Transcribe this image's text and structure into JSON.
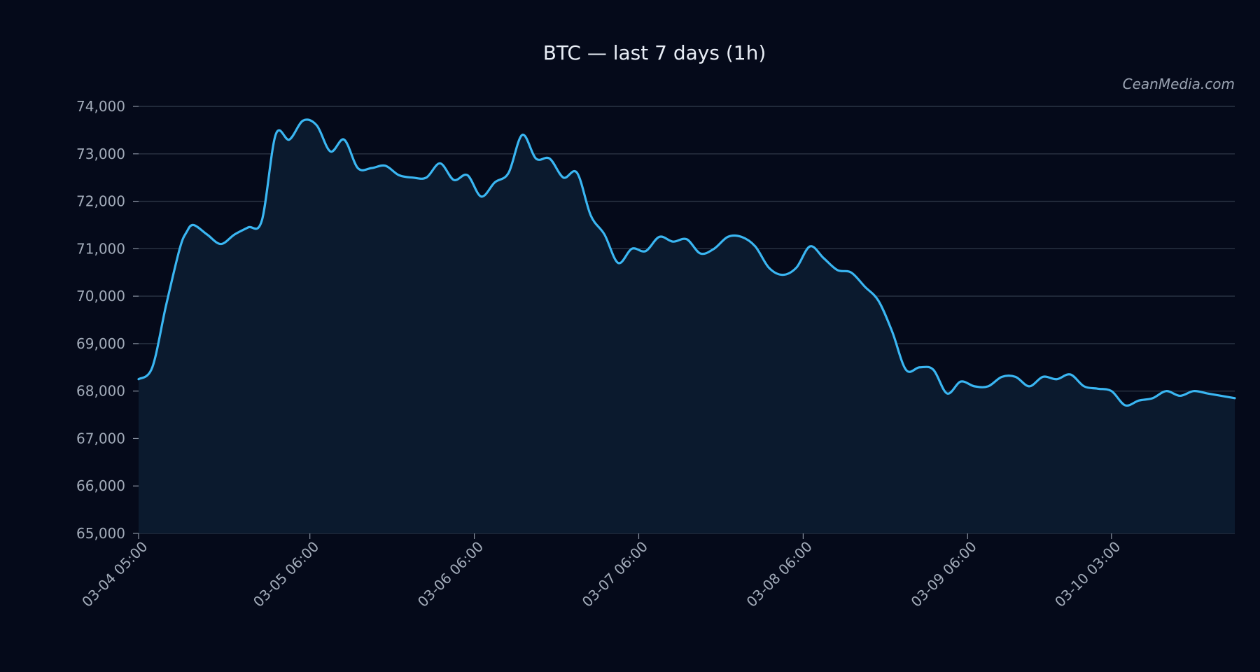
{
  "watermark": "CeanMedia.com",
  "colors": {
    "background": "#050a1a",
    "line": "#3ab6f2",
    "area": "#0b1a2e",
    "grid": "#2b3444",
    "text": "#a3acba",
    "title": "#e8edf5"
  },
  "chart_data": {
    "type": "area",
    "title": "BTC — last 7 days (1h)",
    "xlabel": "",
    "ylabel": "",
    "ylim": [
      65000,
      74000
    ],
    "yticks": [
      65000,
      66000,
      67000,
      68000,
      69000,
      70000,
      71000,
      72000,
      73000,
      74000
    ],
    "ytick_labels": [
      "65,000",
      "66,000",
      "67,000",
      "68,000",
      "69,000",
      "70,000",
      "71,000",
      "72,000",
      "73,000",
      "74,000"
    ],
    "xlim": [
      "03-04 05:00",
      "03-10 21:00"
    ],
    "xticks": [
      "03-04 05:00",
      "03-05 06:00",
      "03-06 06:00",
      "03-07 06:00",
      "03-08 06:00",
      "03-09 06:00",
      "03-10 03:00"
    ],
    "grid": "horizontal",
    "series": [
      {
        "points": [
          [
            "03-04 05:00",
            68250
          ],
          [
            "03-04 07:00",
            68500
          ],
          [
            "03-04 09:00",
            69800
          ],
          [
            "03-04 11:00",
            71000
          ],
          [
            "03-04 12:00",
            71350
          ],
          [
            "03-04 13:00",
            71500
          ],
          [
            "03-04 15:00",
            71300
          ],
          [
            "03-04 17:00",
            71100
          ],
          [
            "03-04 19:00",
            71300
          ],
          [
            "03-04 21:00",
            71450
          ],
          [
            "03-04 23:00",
            71600
          ],
          [
            "03-05 01:00",
            73400
          ],
          [
            "03-05 03:00",
            73300
          ],
          [
            "03-05 05:00",
            73700
          ],
          [
            "03-05 07:00",
            73600
          ],
          [
            "03-05 09:00",
            73050
          ],
          [
            "03-05 11:00",
            73300
          ],
          [
            "03-05 13:00",
            72700
          ],
          [
            "03-05 15:00",
            72700
          ],
          [
            "03-05 17:00",
            72750
          ],
          [
            "03-05 19:00",
            72550
          ],
          [
            "03-05 21:00",
            72500
          ],
          [
            "03-05 23:00",
            72500
          ],
          [
            "03-06 01:00",
            72800
          ],
          [
            "03-06 03:00",
            72450
          ],
          [
            "03-06 05:00",
            72550
          ],
          [
            "03-06 07:00",
            72100
          ],
          [
            "03-06 09:00",
            72400
          ],
          [
            "03-06 11:00",
            72600
          ],
          [
            "03-06 13:00",
            73400
          ],
          [
            "03-06 15:00",
            72900
          ],
          [
            "03-06 17:00",
            72900
          ],
          [
            "03-06 19:00",
            72500
          ],
          [
            "03-06 21:00",
            72600
          ],
          [
            "03-06 23:00",
            71700
          ],
          [
            "03-07 01:00",
            71300
          ],
          [
            "03-07 03:00",
            70700
          ],
          [
            "03-07 05:00",
            71000
          ],
          [
            "03-07 07:00",
            70950
          ],
          [
            "03-07 09:00",
            71250
          ],
          [
            "03-07 11:00",
            71150
          ],
          [
            "03-07 13:00",
            71200
          ],
          [
            "03-07 15:00",
            70900
          ],
          [
            "03-07 17:00",
            71000
          ],
          [
            "03-07 19:00",
            71250
          ],
          [
            "03-07 21:00",
            71250
          ],
          [
            "03-07 23:00",
            71050
          ],
          [
            "03-08 01:00",
            70600
          ],
          [
            "03-08 03:00",
            70450
          ],
          [
            "03-08 05:00",
            70600
          ],
          [
            "03-08 07:00",
            71050
          ],
          [
            "03-08 09:00",
            70800
          ],
          [
            "03-08 11:00",
            70550
          ],
          [
            "03-08 13:00",
            70500
          ],
          [
            "03-08 15:00",
            70200
          ],
          [
            "03-08 17:00",
            69900
          ],
          [
            "03-08 19:00",
            69250
          ],
          [
            "03-08 21:00",
            68450
          ],
          [
            "03-08 23:00",
            68500
          ],
          [
            "03-09 01:00",
            68450
          ],
          [
            "03-09 03:00",
            67950
          ],
          [
            "03-09 05:00",
            68200
          ],
          [
            "03-09 07:00",
            68100
          ],
          [
            "03-09 09:00",
            68100
          ],
          [
            "03-09 11:00",
            68300
          ],
          [
            "03-09 13:00",
            68300
          ],
          [
            "03-09 15:00",
            68100
          ],
          [
            "03-09 17:00",
            68300
          ],
          [
            "03-09 19:00",
            68250
          ],
          [
            "03-09 21:00",
            68350
          ],
          [
            "03-09 23:00",
            68100
          ],
          [
            "03-10 01:00",
            68050
          ],
          [
            "03-10 03:00",
            68000
          ],
          [
            "03-10 05:00",
            67700
          ],
          [
            "03-10 07:00",
            67800
          ],
          [
            "03-10 09:00",
            67850
          ],
          [
            "03-10 11:00",
            68000
          ],
          [
            "03-10 13:00",
            67900
          ],
          [
            "03-10 15:00",
            68000
          ],
          [
            "03-10 17:00",
            67950
          ],
          [
            "03-10 19:00",
            67900
          ],
          [
            "03-10 21:00",
            67850
          ]
        ]
      }
    ],
    "values_by_pixel_column": [
      68250,
      68500,
      69800,
      71000,
      71350,
      71500,
      71300,
      71100,
      71300,
      71450,
      71600,
      73400,
      73300,
      73700,
      73600,
      73050,
      73300,
      72700,
      72700,
      72750,
      72550,
      72500,
      72500,
      72800,
      72450,
      72550,
      72100,
      72400,
      72600,
      73400,
      72900,
      72900,
      72500,
      72600,
      71700,
      71300,
      70700,
      71000,
      70950,
      71250,
      71150,
      71200,
      70900,
      71000,
      71250,
      71250,
      71050,
      70600,
      70450,
      70600,
      71050,
      70800,
      70550,
      70500,
      70200,
      69900,
      69250,
      68450,
      68500,
      68450,
      67950,
      68200,
      68100,
      68100,
      68300,
      68300,
      68100,
      68300,
      68250,
      68350,
      68100,
      68050,
      68000,
      67700,
      67800,
      67850,
      68000,
      67900,
      68000,
      67950,
      67900,
      67850
    ]
  }
}
